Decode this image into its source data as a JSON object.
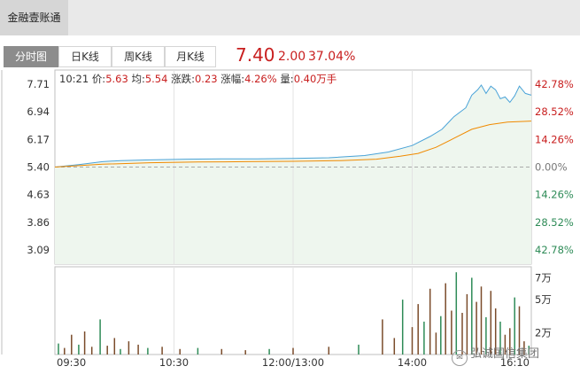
{
  "top_tab": "金融壹账通",
  "period_tabs": [
    "分时图",
    "日K线",
    "周K线",
    "月K线"
  ],
  "active_tab": 0,
  "quote": {
    "price": "7.40",
    "change": "2.00",
    "change_pct": "37.04%"
  },
  "info": {
    "time": "10:21",
    "price_label": "价:",
    "price": "5.63",
    "avg_label": "均:",
    "avg": "5.54",
    "chg_label": "涨跌:",
    "chg": "0.23",
    "pct_label": "涨幅:",
    "pct": "4.26%",
    "vol_label": "量:",
    "vol": "0.40万手"
  },
  "watermark": "弘诚国信集团",
  "colors": {
    "price_line": "#4aa3d8",
    "avg_line": "#f08a00",
    "up": "#c81e1e",
    "down": "#2e8b57",
    "volume": "#7a4b2a"
  },
  "chart_data": {
    "type": "line",
    "prev_close": 5.4,
    "ylim": [
      2.7,
      8.1
    ],
    "y_ticks_left": [
      "7.71",
      "6.94",
      "6.17",
      "5.40",
      "4.63",
      "3.86",
      "3.09"
    ],
    "y_ticks_right": [
      "42.78%",
      "28.52%",
      "14.26%",
      "0.00%",
      "14.26%",
      "28.52%",
      "42.78%"
    ],
    "x_ticks": [
      "09:30",
      "10:30",
      "12:00/13:00",
      "14:00",
      "16:10"
    ],
    "x_minutes": 400,
    "series": [
      {
        "x": [
          0,
          20,
          40,
          55,
          80,
          110,
          140,
          170,
          200,
          230,
          260,
          280,
          300,
          315,
          325,
          335,
          345,
          350,
          355,
          358,
          362,
          366,
          370,
          374,
          378,
          382,
          386,
          390,
          395,
          400
        ],
        "values": [
          5.4,
          5.47,
          5.55,
          5.58,
          5.6,
          5.62,
          5.63,
          5.63,
          5.64,
          5.66,
          5.72,
          5.82,
          6.0,
          6.25,
          6.45,
          6.8,
          7.05,
          7.4,
          7.55,
          7.68,
          7.45,
          7.65,
          7.55,
          7.3,
          7.35,
          7.2,
          7.38,
          7.65,
          7.45,
          7.4
        ]
      },
      {
        "x": [
          0,
          40,
          80,
          120,
          160,
          200,
          240,
          270,
          290,
          305,
          320,
          335,
          350,
          365,
          380,
          400
        ],
        "values": [
          5.4,
          5.48,
          5.52,
          5.54,
          5.55,
          5.56,
          5.58,
          5.62,
          5.7,
          5.78,
          5.95,
          6.2,
          6.45,
          6.58,
          6.65,
          6.68
        ]
      }
    ],
    "volume": {
      "y_ticks": [
        "7万",
        "5万",
        "2万"
      ],
      "ylim": [
        0,
        8
      ],
      "x": [
        3,
        8,
        14,
        20,
        25,
        31,
        38,
        44,
        50,
        55,
        62,
        70,
        78,
        90,
        105,
        120,
        140,
        160,
        180,
        200,
        230,
        255,
        275,
        285,
        292,
        300,
        305,
        310,
        315,
        320,
        324,
        328,
        333,
        337,
        342,
        346,
        350,
        354,
        358,
        362,
        366,
        370,
        374,
        378,
        382,
        386,
        390,
        394,
        398
      ],
      "values": [
        1.0,
        0.6,
        1.8,
        0.9,
        2.1,
        0.7,
        3.2,
        0.8,
        1.5,
        0.5,
        1.2,
        0.9,
        0.6,
        0.7,
        0.5,
        0.6,
        0.5,
        0.4,
        0.5,
        0.6,
        0.7,
        0.9,
        3.2,
        1.5,
        5.0,
        2.5,
        4.6,
        3.0,
        6.0,
        2.0,
        3.5,
        6.5,
        4.0,
        7.5,
        3.8,
        5.5,
        7.0,
        4.8,
        6.2,
        3.4,
        5.8,
        4.2,
        3.0,
        1.8,
        2.4,
        5.2,
        4.4,
        1.2,
        0.8
      ]
    }
  }
}
